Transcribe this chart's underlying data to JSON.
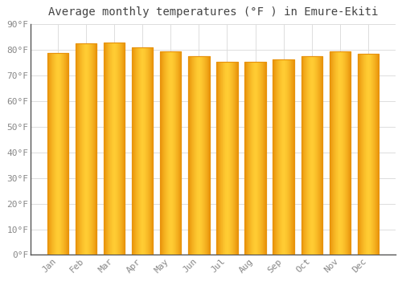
{
  "title": "Average monthly temperatures (°F ) in Emure-Ekiti",
  "months": [
    "Jan",
    "Feb",
    "Mar",
    "Apr",
    "May",
    "Jun",
    "Jul",
    "Aug",
    "Sep",
    "Oct",
    "Nov",
    "Dec"
  ],
  "values": [
    79.0,
    82.5,
    83.0,
    81.0,
    79.5,
    77.5,
    75.5,
    75.5,
    76.5,
    77.5,
    79.5,
    78.5
  ],
  "bar_color_edge": "#E8920A",
  "bar_color_center": "#FFCC33",
  "bar_color_mid": "#FFA500",
  "background_color": "#FFFFFF",
  "grid_color": "#DDDDDD",
  "ylim": [
    0,
    90
  ],
  "yticks": [
    0,
    10,
    20,
    30,
    40,
    50,
    60,
    70,
    80,
    90
  ],
  "ytick_labels": [
    "0°F",
    "10°F",
    "20°F",
    "30°F",
    "40°F",
    "50°F",
    "60°F",
    "70°F",
    "80°F",
    "90°F"
  ],
  "title_fontsize": 10,
  "tick_fontsize": 8,
  "figsize": [
    5.0,
    3.5
  ],
  "dpi": 100
}
